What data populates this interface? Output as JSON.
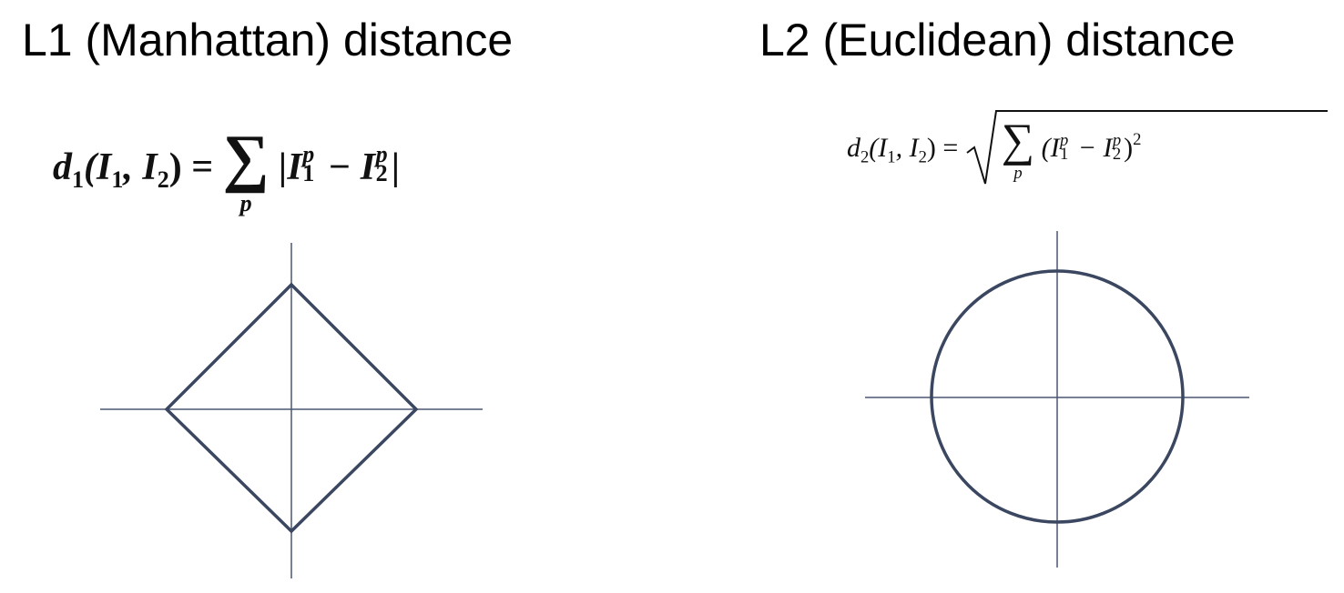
{
  "left_panel": {
    "title": "L1 (Manhattan) distance",
    "formula": {
      "lhs_d": "d",
      "lhs_d_sub": "1",
      "lhs_args": "(I",
      "arg1_sub": "1",
      "comma": ", I",
      "arg2_sub": "2",
      "close_eq": ") =",
      "sigma": "∑",
      "sigma_under": "p",
      "body_open": "|I",
      "term1_sup": "p",
      "term1_sub": "1",
      "minus": " − I",
      "term2_sup": "p",
      "term2_sub": "2",
      "body_close": "|"
    },
    "shape": "diamond"
  },
  "right_panel": {
    "title": "L2 (Euclidean) distance",
    "formula": {
      "lhs_d": "d",
      "lhs_d_sub": "2",
      "lhs_args": "(I",
      "arg1_sub": "1",
      "comma": ", I",
      "arg2_sub": "2",
      "close_eq": ") =",
      "sigma": "∑",
      "sigma_under": "p",
      "body_open": "(I",
      "term1_sup": "p",
      "term1_sub": "1",
      "minus": " − I",
      "term2_sup": "p",
      "term2_sub": "2",
      "body_close": ")",
      "power": "2"
    },
    "shape": "circle"
  },
  "colors": {
    "axis": "#4a5670",
    "shape_stroke": "#3b4760",
    "text": "#000000"
  }
}
